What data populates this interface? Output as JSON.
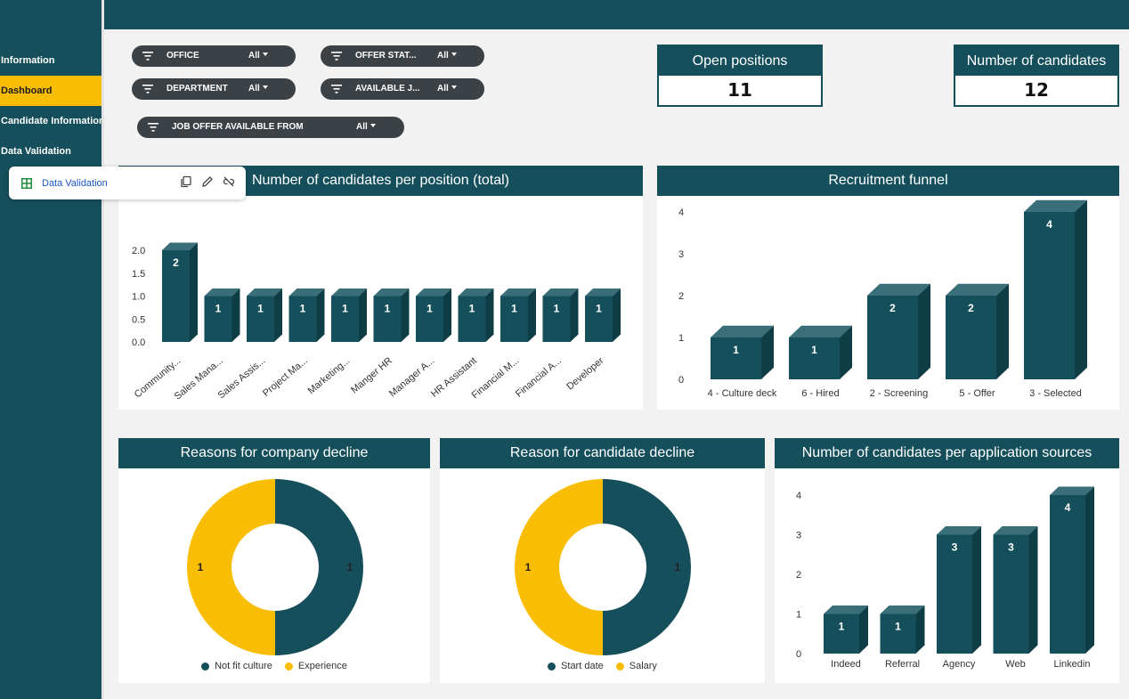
{
  "sidebar": {
    "items": [
      {
        "label": "Information",
        "active": false
      },
      {
        "label": "Dashboard",
        "active": true
      },
      {
        "label": "Candidate Information",
        "active": false
      },
      {
        "label": "Data Validation",
        "active": false
      }
    ]
  },
  "popup": {
    "label": "Data Validation"
  },
  "filters": [
    {
      "name": "OFFICE",
      "value": "All"
    },
    {
      "name": "OFFER STAT...",
      "value": "All"
    },
    {
      "name": "DEPARTMENT",
      "value": "All"
    },
    {
      "name": "AVAILABLE J...",
      "value": "All"
    },
    {
      "name": "JOB OFFER AVAILABLE FROM",
      "value": "All"
    }
  ],
  "kpis": {
    "open_positions": {
      "title": "Open positions",
      "value": "11"
    },
    "candidates": {
      "title": "Number of candidates",
      "value": "12"
    }
  },
  "colors": {
    "teal": "#154f5b",
    "teal_side": "#0f3d46",
    "teal_top": "#3a6f79",
    "yellow": "#f9bd04",
    "chip": "#3c4146"
  },
  "chart_data": [
    {
      "type": "bar",
      "title": "Number of candidates per position (total)",
      "categories": [
        "Community...",
        "Sales Mana...",
        "Sales Assis...",
        "Project Ma...",
        "Marketing...",
        "Manger HR",
        "Manager A...",
        "HR Assistant",
        "Financial M...",
        "Financial A...",
        "Developer"
      ],
      "values": [
        2,
        1,
        1,
        1,
        1,
        1,
        1,
        1,
        1,
        1,
        1
      ],
      "yticks": [
        "0.0",
        "0.5",
        "1.0",
        "1.5",
        "2.0"
      ],
      "ylim": [
        0,
        2
      ]
    },
    {
      "type": "bar",
      "title": "Recruitment funnel",
      "categories": [
        "4 - Culture deck",
        "6 - Hired",
        "2 - Screening",
        "5 - Offer",
        "3 - Selected"
      ],
      "values": [
        1,
        1,
        2,
        2,
        4
      ],
      "yticks": [
        "0",
        "1",
        "2",
        "3",
        "4"
      ],
      "ylim": [
        0,
        4
      ]
    },
    {
      "type": "pie",
      "title": "Reasons for company decline",
      "labels": [
        "Not fit culture",
        "Experience"
      ],
      "values": [
        1,
        1
      ],
      "colors": [
        "#154f5b",
        "#f9bd04"
      ]
    },
    {
      "type": "pie",
      "title": "Reason for candidate decline",
      "labels": [
        "Start date",
        "Salary"
      ],
      "values": [
        1,
        1
      ],
      "colors": [
        "#154f5b",
        "#f9bd04"
      ]
    },
    {
      "type": "bar",
      "title": "Number of candidates per application sources",
      "categories": [
        "Indeed",
        "Referral",
        "Agency",
        "Web",
        "Linkedin"
      ],
      "values": [
        1,
        1,
        3,
        3,
        4
      ],
      "yticks": [
        "0",
        "1",
        "2",
        "3",
        "4"
      ],
      "ylim": [
        0,
        4
      ]
    }
  ]
}
